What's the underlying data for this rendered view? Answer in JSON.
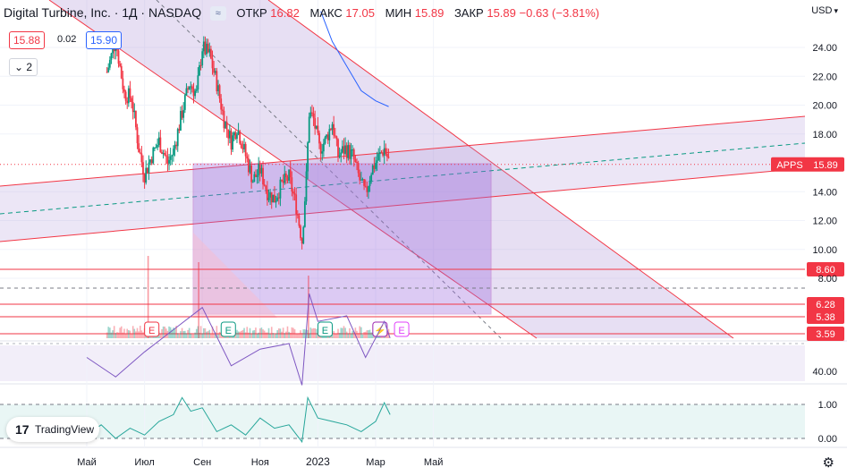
{
  "header": {
    "title": "Digital Turbine, Inc. · 1Д · NASDAQ",
    "open_label": "ОТКР",
    "open": "16.82",
    "high_label": "МАКС",
    "high": "17.05",
    "low_label": "МИН",
    "low": "15.89",
    "close_label": "ЗАКР",
    "close": "15.89",
    "change": "−0.63 (−3.81%)"
  },
  "quote": {
    "bid": "15.88",
    "spread": "0.02",
    "ask": "15.90"
  },
  "collapse_label": "2",
  "currency": "USD",
  "logo_text": "TradingView",
  "price_tag": {
    "symbol": "APPS",
    "value": "15.89"
  },
  "hlines": [
    {
      "label": "8.60",
      "value": 8.6
    },
    {
      "label": "6.28",
      "value": 6.28
    },
    {
      "label": "5.38",
      "value": 5.38
    },
    {
      "label": "3.59",
      "value": 3.59
    }
  ],
  "colors": {
    "up": "#089981",
    "down": "#f23645",
    "channel": "#b39ddb",
    "hline": "#f23645",
    "rsi": "#7e57c2",
    "lower": "#26a69a",
    "rect": "#9c6ade"
  },
  "events": [
    {
      "label": "E",
      "month": 2.25,
      "color": "#f23645"
    },
    {
      "label": "E",
      "month": 4.9,
      "color": "#089981"
    },
    {
      "label": "E",
      "month": 8.25,
      "color": "#089981"
    },
    {
      "label": "⚡",
      "month": 10.15,
      "color": "#9c27b0"
    },
    {
      "label": "E",
      "month": 10.9,
      "color": "#e040fb"
    }
  ],
  "chart_data": [
    {
      "type": "candlestick",
      "ylim": [
        3.59,
        26.5
      ],
      "yticks": [
        {
          "label": "24.00",
          "value": 24
        },
        {
          "label": "22.00",
          "value": 22
        },
        {
          "label": "20.00",
          "value": 20
        },
        {
          "label": "18.00",
          "value": 18
        },
        {
          "label": "14.00",
          "value": 14
        },
        {
          "label": "12.00",
          "value": 12
        },
        {
          "label": "10.00",
          "value": 10
        },
        {
          "label": "8.00",
          "value": 8
        }
      ],
      "xticks": [
        {
          "label": "Май",
          "month": 0
        },
        {
          "label": "Июл",
          "month": 2
        },
        {
          "label": "Сен",
          "month": 4
        },
        {
          "label": "Ноя",
          "month": 6
        },
        {
          "label": "2023",
          "month": 8
        },
        {
          "label": "Мар",
          "month": 10
        },
        {
          "label": "Май",
          "month": 12
        }
      ],
      "closes": [
        {
          "month": 0.0,
          "price": 26.5
        },
        {
          "month": 0.4,
          "price": 24.0
        },
        {
          "month": 0.7,
          "price": 22.3
        },
        {
          "month": 1.0,
          "price": 24.5
        },
        {
          "month": 1.3,
          "price": 20.8
        },
        {
          "month": 1.55,
          "price": 20.5
        },
        {
          "month": 1.8,
          "price": 17.0
        },
        {
          "month": 2.0,
          "price": 15.2
        },
        {
          "month": 2.25,
          "price": 16.5
        },
        {
          "month": 2.5,
          "price": 17.5
        },
        {
          "month": 2.8,
          "price": 16.0
        },
        {
          "month": 3.0,
          "price": 16.8
        },
        {
          "month": 3.3,
          "price": 19.5
        },
        {
          "month": 3.55,
          "price": 21.5
        },
        {
          "month": 3.8,
          "price": 20.8
        },
        {
          "month": 4.0,
          "price": 24.0
        },
        {
          "month": 4.25,
          "price": 23.5
        },
        {
          "month": 4.5,
          "price": 21.5
        },
        {
          "month": 4.75,
          "price": 19.0
        },
        {
          "month": 5.0,
          "price": 17.5
        },
        {
          "month": 5.2,
          "price": 18.5
        },
        {
          "month": 5.5,
          "price": 16.5
        },
        {
          "month": 5.75,
          "price": 14.8
        },
        {
          "month": 6.0,
          "price": 15.5
        },
        {
          "month": 6.25,
          "price": 14.0
        },
        {
          "month": 6.5,
          "price": 13.5
        },
        {
          "month": 6.75,
          "price": 14.5
        },
        {
          "month": 7.0,
          "price": 15.0
        },
        {
          "month": 7.25,
          "price": 13.0
        },
        {
          "month": 7.45,
          "price": 10.6
        },
        {
          "month": 7.6,
          "price": 15.0
        },
        {
          "month": 7.7,
          "price": 19.5
        },
        {
          "month": 7.85,
          "price": 19.0
        },
        {
          "month": 8.05,
          "price": 17.0
        },
        {
          "month": 8.25,
          "price": 17.5
        },
        {
          "month": 8.5,
          "price": 18.8
        },
        {
          "month": 8.7,
          "price": 16.5
        },
        {
          "month": 8.95,
          "price": 17.0
        },
        {
          "month": 9.2,
          "price": 16.5
        },
        {
          "month": 9.45,
          "price": 14.8
        },
        {
          "month": 9.65,
          "price": 13.8
        },
        {
          "month": 9.85,
          "price": 15.5
        },
        {
          "month": 10.05,
          "price": 16.2
        },
        {
          "month": 10.3,
          "price": 17.0
        },
        {
          "month": 10.5,
          "price": 15.89
        }
      ],
      "moving_average": [
        {
          "month": 8.1,
          "price": 26.5
        },
        {
          "month": 8.5,
          "price": 24.4
        },
        {
          "month": 9.0,
          "price": 22.7
        },
        {
          "month": 9.5,
          "price": 21.0
        },
        {
          "month": 10.0,
          "price": 20.3
        },
        {
          "month": 10.45,
          "price": 19.9
        }
      ]
    },
    {
      "type": "line",
      "name": "RSI",
      "ylim": [
        30,
        80
      ],
      "yticks": [
        {
          "label": "40.00",
          "value": 40
        }
      ],
      "series": [
        {
          "values": [
            {
              "month": 0.0,
              "value": 45
            },
            {
              "month": 1.0,
              "value": 38
            },
            {
              "month": 2.0,
              "value": 47
            },
            {
              "month": 3.0,
              "value": 55
            },
            {
              "month": 4.0,
              "value": 63
            },
            {
              "month": 5.0,
              "value": 42
            },
            {
              "month": 6.0,
              "value": 48
            },
            {
              "month": 7.0,
              "value": 50
            },
            {
              "month": 7.45,
              "value": 35
            },
            {
              "month": 7.7,
              "value": 68
            },
            {
              "month": 8.0,
              "value": 58
            },
            {
              "month": 9.0,
              "value": 60
            },
            {
              "month": 9.65,
              "value": 45
            },
            {
              "month": 10.3,
              "value": 58
            },
            {
              "month": 10.5,
              "value": 52
            }
          ]
        }
      ]
    },
    {
      "type": "line",
      "name": "lower",
      "ylim": [
        -0.2,
        1.3
      ],
      "yticks": [
        {
          "label": "1.00",
          "value": 1.0
        },
        {
          "label": "0.00",
          "value": 0.0
        }
      ],
      "series": [
        {
          "values": [
            {
              "month": 0.0,
              "value": 0.1
            },
            {
              "month": 0.5,
              "value": 0.4
            },
            {
              "month": 1.0,
              "value": 0.0
            },
            {
              "month": 1.5,
              "value": 0.3
            },
            {
              "month": 2.0,
              "value": 0.1
            },
            {
              "month": 2.5,
              "value": 0.5
            },
            {
              "month": 3.0,
              "value": 0.7
            },
            {
              "month": 3.3,
              "value": 1.2
            },
            {
              "month": 3.6,
              "value": 0.8
            },
            {
              "month": 4.0,
              "value": 0.9
            },
            {
              "month": 4.5,
              "value": 0.2
            },
            {
              "month": 5.0,
              "value": 0.4
            },
            {
              "month": 5.5,
              "value": 0.1
            },
            {
              "month": 6.0,
              "value": 0.6
            },
            {
              "month": 6.5,
              "value": 0.3
            },
            {
              "month": 7.0,
              "value": 0.4
            },
            {
              "month": 7.45,
              "value": -0.1
            },
            {
              "month": 7.65,
              "value": 1.2
            },
            {
              "month": 8.0,
              "value": 0.6
            },
            {
              "month": 8.5,
              "value": 0.5
            },
            {
              "month": 9.0,
              "value": 0.4
            },
            {
              "month": 9.5,
              "value": 0.2
            },
            {
              "month": 10.0,
              "value": 0.5
            },
            {
              "month": 10.3,
              "value": 1.05
            },
            {
              "month": 10.5,
              "value": 0.7
            }
          ]
        }
      ]
    }
  ]
}
